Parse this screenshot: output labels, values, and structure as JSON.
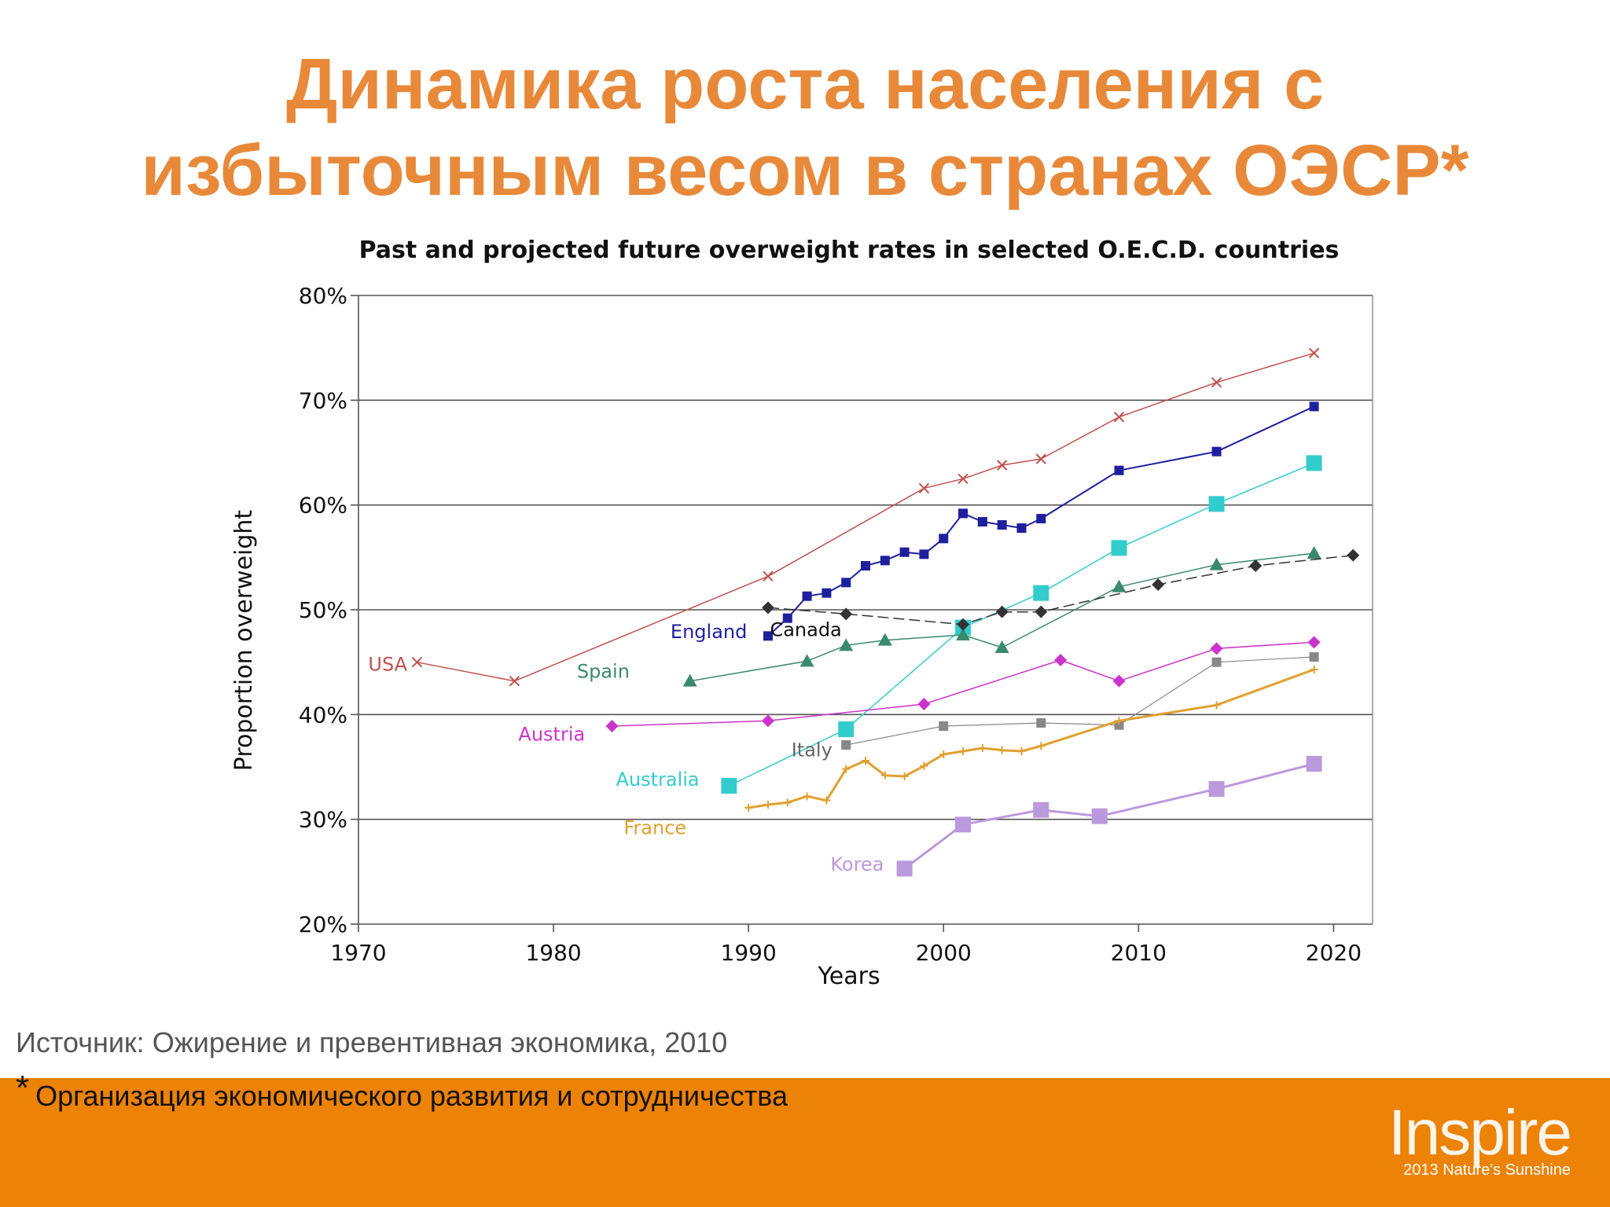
{
  "slide": {
    "title_line1": "Динамика роста населения с",
    "title_line2": "избыточным весом в странах ОЭСР*",
    "source": "Источник: Ожирение и превентивная экономика, 2010",
    "footnote_star": "*",
    "footnote": "Организация экономического развития и сотрудничества",
    "brand_word": "Inspire",
    "brand_sub": "2013 Nature's Sunshine"
  },
  "colors": {
    "title": "#e8893a",
    "footer_bar": "#ec8206"
  },
  "chart_data": {
    "type": "line",
    "title": "Past and projected future overweight rates in selected O.E.C.D. countries",
    "xlabel": "Years",
    "ylabel": "Proportion overweight",
    "xlim": [
      1970,
      2022
    ],
    "ylim": [
      20,
      80
    ],
    "x_ticks": [
      "1970",
      "1980",
      "1990",
      "2000",
      "2010",
      "2020"
    ],
    "y_ticks": [
      "20%",
      "30%",
      "40%",
      "50%",
      "60%",
      "70%",
      "80%"
    ],
    "grid": "horizontal",
    "legend": "inline labels",
    "series": [
      {
        "name": "USA",
        "color": "#c0504d",
        "marker": "x",
        "width": 1.5,
        "dashed": false,
        "x": [
          1973,
          1978,
          1991,
          1999,
          2001,
          2003,
          2005,
          2009,
          2014,
          2019
        ],
        "y": [
          45,
          43.2,
          53.2,
          61.6,
          62.5,
          63.8,
          64.4,
          68.4,
          71.7,
          74.5
        ]
      },
      {
        "name": "England",
        "color": "#1f1f9e",
        "marker": "square",
        "width": 2,
        "dashed": false,
        "x": [
          1991,
          1992,
          1993,
          1994,
          1995,
          1996,
          1997,
          1998,
          1999,
          2000,
          2001,
          2002,
          2003,
          2004,
          2005,
          2009,
          2014,
          2019
        ],
        "y": [
          47.5,
          49.2,
          51.3,
          51.6,
          52.6,
          54.2,
          54.7,
          55.5,
          55.3,
          56.8,
          59.2,
          58.4,
          58.1,
          57.8,
          58.7,
          63.3,
          65.1,
          69.4
        ]
      },
      {
        "name": "Australia",
        "color": "#33cccc",
        "marker": "bigsquare",
        "width": 1.5,
        "dashed": false,
        "x": [
          1989,
          1995,
          2001,
          2005,
          2009,
          2014,
          2019
        ],
        "y": [
          33.2,
          38.6,
          48.3,
          51.6,
          55.9,
          60.1,
          64
        ]
      },
      {
        "name": "Spain",
        "color": "#3a8a6e",
        "marker": "triangle",
        "width": 1.5,
        "dashed": false,
        "x": [
          1987,
          1993,
          1995,
          1997,
          2001,
          2003,
          2009,
          2014,
          2019
        ],
        "y": [
          43.2,
          45.1,
          46.6,
          47.1,
          47.6,
          46.4,
          52.2,
          54.3,
          55.4
        ]
      },
      {
        "name": "Canada",
        "color": "#333333",
        "marker": "diamond",
        "width": 1.5,
        "dashed": true,
        "x": [
          1991,
          1995,
          2001,
          2003,
          2005,
          2011,
          2016,
          2021
        ],
        "y": [
          50.2,
          49.6,
          48.6,
          49.8,
          49.8,
          52.4,
          54.2,
          55.2
        ]
      },
      {
        "name": "Austria",
        "color": "#cc33cc",
        "marker": "diamond",
        "width": 1.5,
        "dashed": false,
        "x": [
          1983,
          1991,
          1999,
          2006,
          2009,
          2014,
          2019
        ],
        "y": [
          38.9,
          39.4,
          41,
          45.2,
          43.2,
          46.3,
          46.9
        ]
      },
      {
        "name": "Italy",
        "color": "#888888",
        "marker": "square",
        "width": 1.2,
        "dashed": false,
        "x": [
          1995,
          2000,
          2005,
          2009,
          2014,
          2019
        ],
        "y": [
          37.1,
          38.9,
          39.2,
          39,
          45,
          45.5
        ]
      },
      {
        "name": "France",
        "color": "#e0a030",
        "marker": "plus",
        "width": 3,
        "dashed": false,
        "x": [
          1990,
          1991,
          1992,
          1993,
          1994,
          1995,
          1996,
          1997,
          1998,
          1999,
          2000,
          2001,
          2002,
          2003,
          2004,
          2005,
          2009,
          2014,
          2019
        ],
        "y": [
          31.1,
          31.4,
          31.6,
          32.2,
          31.8,
          34.8,
          35.6,
          34.2,
          34.1,
          35.1,
          36.2,
          36.5,
          36.8,
          36.6,
          36.5,
          37,
          39.4,
          40.9,
          44.3
        ]
      },
      {
        "name": "Korea",
        "color": "#bb99dd",
        "marker": "bigsquare",
        "width": 3,
        "dashed": false,
        "x": [
          1998,
          2001,
          2005,
          2008,
          2014,
          2019
        ],
        "y": [
          25.3,
          29.5,
          30.9,
          30.3,
          32.9,
          35.3
        ]
      }
    ],
    "labels": [
      {
        "text": "USA",
        "color": "#c0504d",
        "x": 1970.5,
        "y": 44.2
      },
      {
        "text": "England",
        "color": "#1f1f9e",
        "x": 1986,
        "y": 47.3
      },
      {
        "text": "Canada",
        "color": "#111111",
        "x": 1991.1,
        "y": 47.5
      },
      {
        "text": "Spain",
        "color": "#3a8a6e",
        "x": 1981.2,
        "y": 43.5
      },
      {
        "text": "Austria",
        "color": "#cc33cc",
        "x": 1978.2,
        "y": 37.5
      },
      {
        "text": "Italy",
        "color": "#666666",
        "x": 1992.2,
        "y": 36
      },
      {
        "text": "Australia",
        "color": "#33cccc",
        "x": 1983.2,
        "y": 33.2
      },
      {
        "text": "France",
        "color": "#e0a030",
        "x": 1983.6,
        "y": 28.6
      },
      {
        "text": "Korea",
        "color": "#bb99dd",
        "x": 1994.2,
        "y": 25.1
      }
    ]
  }
}
